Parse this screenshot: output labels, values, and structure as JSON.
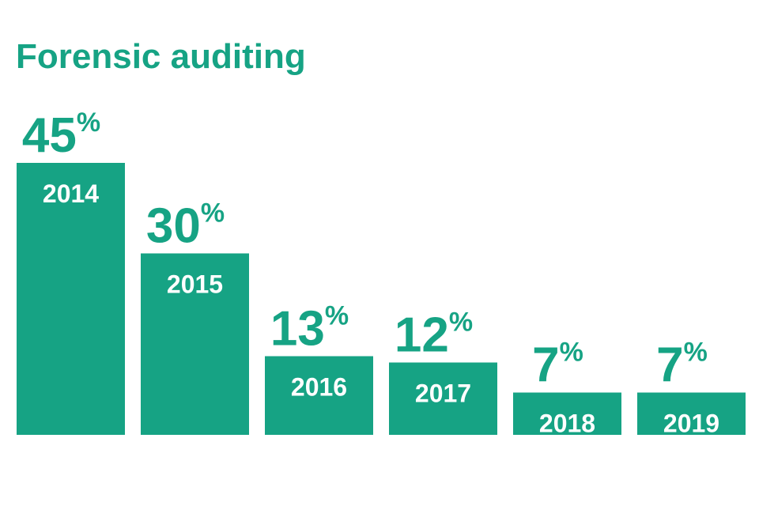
{
  "chart_data": {
    "type": "bar",
    "title": "Forensic auditing",
    "categories": [
      "2014",
      "2015",
      "2016",
      "2017",
      "2018",
      "2019"
    ],
    "values": [
      45,
      30,
      13,
      12,
      7,
      7
    ],
    "unit": "%",
    "ylim": [
      0,
      45
    ],
    "grid": false,
    "legend": "none",
    "xlabel": "",
    "ylabel": ""
  },
  "colors": {
    "bar": "#16a384",
    "title": "#16a384",
    "value_text": "#16a384",
    "category_text": "#ffffff"
  }
}
